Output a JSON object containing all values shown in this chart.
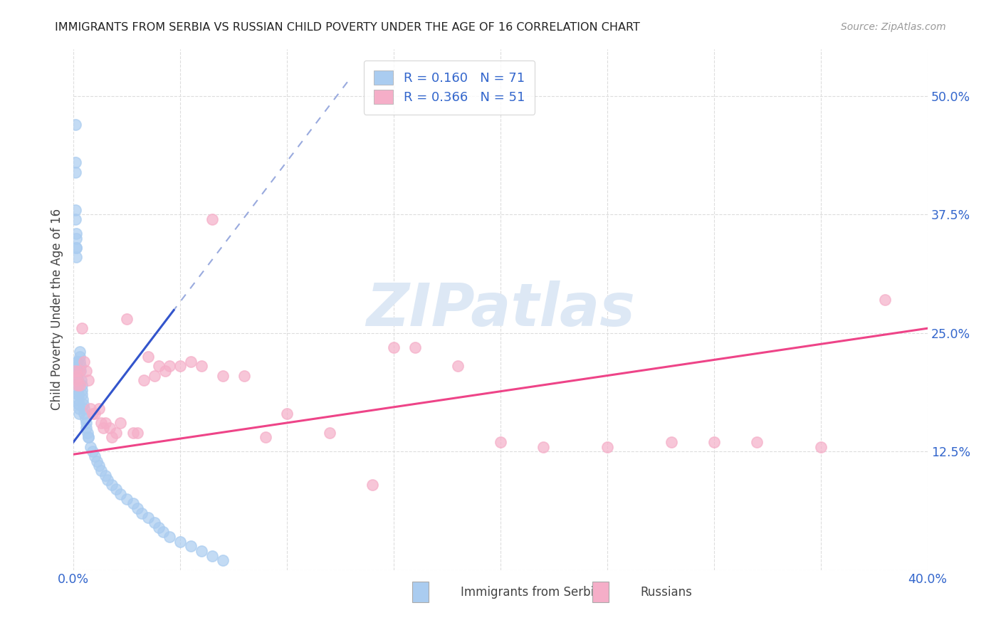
{
  "title": "IMMIGRANTS FROM SERBIA VS RUSSIAN CHILD POVERTY UNDER THE AGE OF 16 CORRELATION CHART",
  "source": "Source: ZipAtlas.com",
  "xlabel_serbia": "Immigrants from Serbia",
  "xlabel_russians": "Russians",
  "ylabel": "Child Poverty Under the Age of 16",
  "xmin": 0.0,
  "xmax": 0.4,
  "ymin": 0.0,
  "ymax": 0.55,
  "R_serbia": 0.16,
  "N_serbia": 71,
  "R_russians": 0.366,
  "N_russians": 51,
  "color_serbia": "#aaccf0",
  "color_russians": "#f5aec8",
  "trendline_serbia_solid_color": "#3355cc",
  "trendline_serbia_dashed_color": "#99aade",
  "trendline_russians_color": "#ee4488",
  "watermark_color": "#dde8f5",
  "background_color": "#ffffff",
  "grid_color": "#dddddd",
  "serbia_x": [
    0.0008,
    0.0008,
    0.0009,
    0.001,
    0.001,
    0.0012,
    0.0012,
    0.0013,
    0.0013,
    0.0014,
    0.0015,
    0.0015,
    0.0016,
    0.0016,
    0.0017,
    0.0017,
    0.0018,
    0.002,
    0.002,
    0.002,
    0.002,
    0.0022,
    0.0023,
    0.0024,
    0.0025,
    0.0025,
    0.0026,
    0.003,
    0.003,
    0.003,
    0.0032,
    0.0033,
    0.0035,
    0.004,
    0.004,
    0.004,
    0.0042,
    0.0045,
    0.005,
    0.005,
    0.0055,
    0.006,
    0.006,
    0.0065,
    0.007,
    0.007,
    0.008,
    0.009,
    0.01,
    0.011,
    0.012,
    0.013,
    0.015,
    0.016,
    0.018,
    0.02,
    0.022,
    0.025,
    0.028,
    0.03,
    0.032,
    0.035,
    0.038,
    0.04,
    0.042,
    0.045,
    0.05,
    0.055,
    0.06,
    0.065,
    0.07
  ],
  "serbia_y": [
    0.47,
    0.43,
    0.42,
    0.38,
    0.37,
    0.355,
    0.35,
    0.34,
    0.34,
    0.33,
    0.22,
    0.21,
    0.22,
    0.215,
    0.21,
    0.205,
    0.2,
    0.2,
    0.195,
    0.19,
    0.185,
    0.185,
    0.18,
    0.175,
    0.175,
    0.17,
    0.165,
    0.23,
    0.225,
    0.22,
    0.215,
    0.21,
    0.2,
    0.195,
    0.19,
    0.185,
    0.18,
    0.175,
    0.17,
    0.165,
    0.16,
    0.155,
    0.15,
    0.145,
    0.14,
    0.14,
    0.13,
    0.125,
    0.12,
    0.115,
    0.11,
    0.105,
    0.1,
    0.095,
    0.09,
    0.085,
    0.08,
    0.075,
    0.07,
    0.065,
    0.06,
    0.055,
    0.05,
    0.045,
    0.04,
    0.035,
    0.03,
    0.025,
    0.02,
    0.015,
    0.01
  ],
  "russians_x": [
    0.001,
    0.0015,
    0.002,
    0.002,
    0.003,
    0.003,
    0.004,
    0.005,
    0.006,
    0.007,
    0.008,
    0.009,
    0.01,
    0.012,
    0.013,
    0.014,
    0.015,
    0.017,
    0.018,
    0.02,
    0.022,
    0.025,
    0.028,
    0.03,
    0.033,
    0.035,
    0.038,
    0.04,
    0.043,
    0.045,
    0.05,
    0.055,
    0.06,
    0.065,
    0.07,
    0.08,
    0.09,
    0.1,
    0.12,
    0.14,
    0.15,
    0.16,
    0.18,
    0.2,
    0.22,
    0.25,
    0.28,
    0.3,
    0.32,
    0.35,
    0.38
  ],
  "russians_y": [
    0.21,
    0.2,
    0.205,
    0.195,
    0.21,
    0.195,
    0.255,
    0.22,
    0.21,
    0.2,
    0.17,
    0.165,
    0.165,
    0.17,
    0.155,
    0.15,
    0.155,
    0.15,
    0.14,
    0.145,
    0.155,
    0.265,
    0.145,
    0.145,
    0.2,
    0.225,
    0.205,
    0.215,
    0.21,
    0.215,
    0.215,
    0.22,
    0.215,
    0.37,
    0.205,
    0.205,
    0.14,
    0.165,
    0.145,
    0.09,
    0.235,
    0.235,
    0.215,
    0.135,
    0.13,
    0.13,
    0.135,
    0.135,
    0.135,
    0.13,
    0.285
  ],
  "trendline_serbia_x0": 0.0,
  "trendline_serbia_y0": 0.135,
  "trendline_serbia_x1": 0.13,
  "trendline_serbia_y1": 0.52,
  "trendline_serbia_solid_xmax": 0.047,
  "trendline_russians_x0": 0.0,
  "trendline_russians_y0": 0.122,
  "trendline_russians_x1": 0.4,
  "trendline_russians_y1": 0.255
}
